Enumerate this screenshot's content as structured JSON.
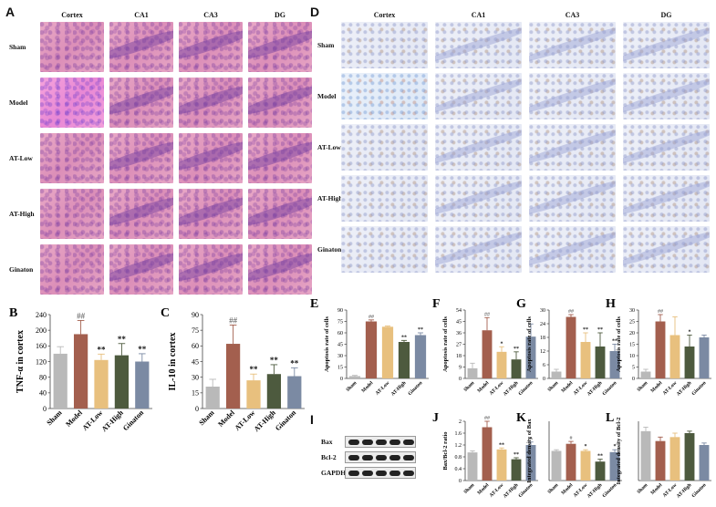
{
  "panels": {
    "A": {
      "label": "A",
      "columns": [
        "Cortex",
        "CA1",
        "CA3",
        "DG"
      ],
      "rows": [
        "Sham",
        "Model",
        "AT-Low",
        "AT-High",
        "Ginaton"
      ]
    },
    "D": {
      "label": "D",
      "columns": [
        "Cortex",
        "CA1",
        "CA3",
        "DG"
      ],
      "rows": [
        "Sham",
        "Model",
        "AT-Low",
        "AT-High",
        "Ginaton"
      ]
    },
    "I": {
      "label": "I",
      "bands": [
        "Bax",
        "Bcl-2",
        "GAPDH"
      ]
    }
  },
  "colors": {
    "Sham": "#b9b9b9",
    "Model": "#a35f4e",
    "AT-Low": "#e8c07e",
    "AT-High": "#4d5a3e",
    "Ginaton": "#7b8aa3"
  },
  "chart_data": [
    {
      "id": "B",
      "label": "B",
      "type": "bar",
      "categories": [
        "Sham",
        "Model",
        "AT-Low",
        "AT-High",
        "Ginaton"
      ],
      "values": [
        140,
        190,
        124,
        136,
        120
      ],
      "errors": [
        18,
        35,
        15,
        30,
        20
      ],
      "ylabel": "TNF-α in cortex",
      "ylim": [
        0,
        240
      ],
      "yticks": [
        0,
        40,
        80,
        120,
        160,
        200,
        240
      ],
      "annotations": [
        "",
        "##",
        "**",
        "**",
        "**"
      ]
    },
    {
      "id": "C",
      "label": "C",
      "type": "bar",
      "categories": [
        "Sham",
        "Model",
        "AT-Low",
        "AT-High",
        "Ginaton"
      ],
      "values": [
        21,
        62,
        27,
        33,
        31
      ],
      "errors": [
        7,
        18,
        6,
        9,
        8
      ],
      "ylabel": "IL-10 in cortex",
      "ylim": [
        0,
        90
      ],
      "yticks": [
        0,
        15,
        30,
        45,
        60,
        75,
        90
      ],
      "annotations": [
        "",
        "##",
        "**",
        "**",
        "**"
      ]
    },
    {
      "id": "E",
      "label": "E",
      "type": "bar",
      "categories": [
        "Sham",
        "Model",
        "AT-Low",
        "AT-High",
        "Ginaton"
      ],
      "values": [
        3,
        75,
        68,
        48,
        57
      ],
      "errors": [
        1,
        2,
        1,
        2,
        3
      ],
      "ylabel": "Apoptosis rate of cells",
      "ylim": [
        0,
        90
      ],
      "yticks": [
        0,
        15,
        30,
        45,
        60,
        75,
        90
      ],
      "annotations": [
        "",
        "##",
        "",
        "**",
        "**"
      ]
    },
    {
      "id": "F",
      "label": "F",
      "type": "bar",
      "categories": [
        "Sham",
        "Model",
        "AT-Low",
        "AT-High",
        "Ginaton"
      ],
      "values": [
        8,
        38,
        21,
        15,
        33
      ],
      "errors": [
        4,
        10,
        4,
        6,
        10
      ],
      "ylabel": "Apoptosis rate of cells",
      "ylim": [
        0,
        54
      ],
      "yticks": [
        0,
        9,
        18,
        27,
        36,
        45,
        54
      ],
      "annotations": [
        "",
        "##",
        "*",
        "**",
        ""
      ]
    },
    {
      "id": "G",
      "label": "G",
      "type": "bar",
      "categories": [
        "Sham",
        "Model",
        "AT-Low",
        "AT-High",
        "Ginaton"
      ],
      "values": [
        3,
        27,
        16,
        14,
        12
      ],
      "errors": [
        1,
        1,
        4,
        6,
        3
      ],
      "ylabel": "Apoptosis rate of cells",
      "ylim": [
        0,
        30
      ],
      "yticks": [
        0,
        6,
        12,
        18,
        24,
        30
      ],
      "annotations": [
        "",
        "##",
        "**",
        "**",
        "**"
      ]
    },
    {
      "id": "H",
      "label": "H",
      "type": "bar",
      "categories": [
        "Sham",
        "Model",
        "AT-Low",
        "AT-High",
        "Ginaton"
      ],
      "values": [
        3,
        25,
        19,
        14,
        18
      ],
      "errors": [
        1,
        3,
        8,
        5,
        1
      ],
      "ylabel": "Apoptosis rate of cells",
      "ylim": [
        0,
        30
      ],
      "yticks": [
        0,
        5,
        10,
        15,
        20,
        25,
        30
      ],
      "annotations": [
        "",
        "##",
        "",
        "*",
        ""
      ]
    },
    {
      "id": "J",
      "label": "J",
      "type": "bar",
      "categories": [
        "Sham",
        "Model",
        "AT-Low",
        "AT-High",
        "Ginaton"
      ],
      "values": [
        0.95,
        1.8,
        1.05,
        0.72,
        1.2
      ],
      "errors": [
        0.05,
        0.2,
        0.05,
        0.05,
        0.1
      ],
      "ylabel": "Bax/Bcl-2 ratio",
      "ylim": [
        0,
        2.0
      ],
      "yticks": [
        0,
        0.4,
        0.8,
        1.2,
        1.6,
        2.0
      ],
      "annotations": [
        "",
        "##",
        "**",
        "**",
        "*"
      ]
    },
    {
      "id": "K",
      "label": "K",
      "type": "bar",
      "categories": [
        "Sham",
        "Model",
        "AT-Low",
        "AT-High",
        "Ginaton"
      ],
      "values": [
        0.25,
        0.31,
        0.25,
        0.16,
        0.24
      ],
      "errors": [
        0.01,
        0.02,
        0.01,
        0.02,
        0.02
      ],
      "ylabel": "Integrated density of Bax",
      "ylim": [
        0,
        0.5
      ],
      "yticks": [],
      "annotations": [
        "",
        "#",
        "*",
        "**",
        "*"
      ]
    },
    {
      "id": "L",
      "label": "L",
      "type": "bar",
      "categories": [
        "Sham",
        "Model",
        "AT-Low",
        "AT-High",
        "Ginaton"
      ],
      "values": [
        0.25,
        0.2,
        0.22,
        0.24,
        0.18
      ],
      "errors": [
        0.02,
        0.02,
        0.02,
        0.01,
        0.01
      ],
      "ylabel": "Integrated density of Bcl-2",
      "ylim": [
        0,
        0.3
      ],
      "yticks": [],
      "annotations": [
        "",
        "",
        "",
        "",
        ""
      ]
    }
  ]
}
